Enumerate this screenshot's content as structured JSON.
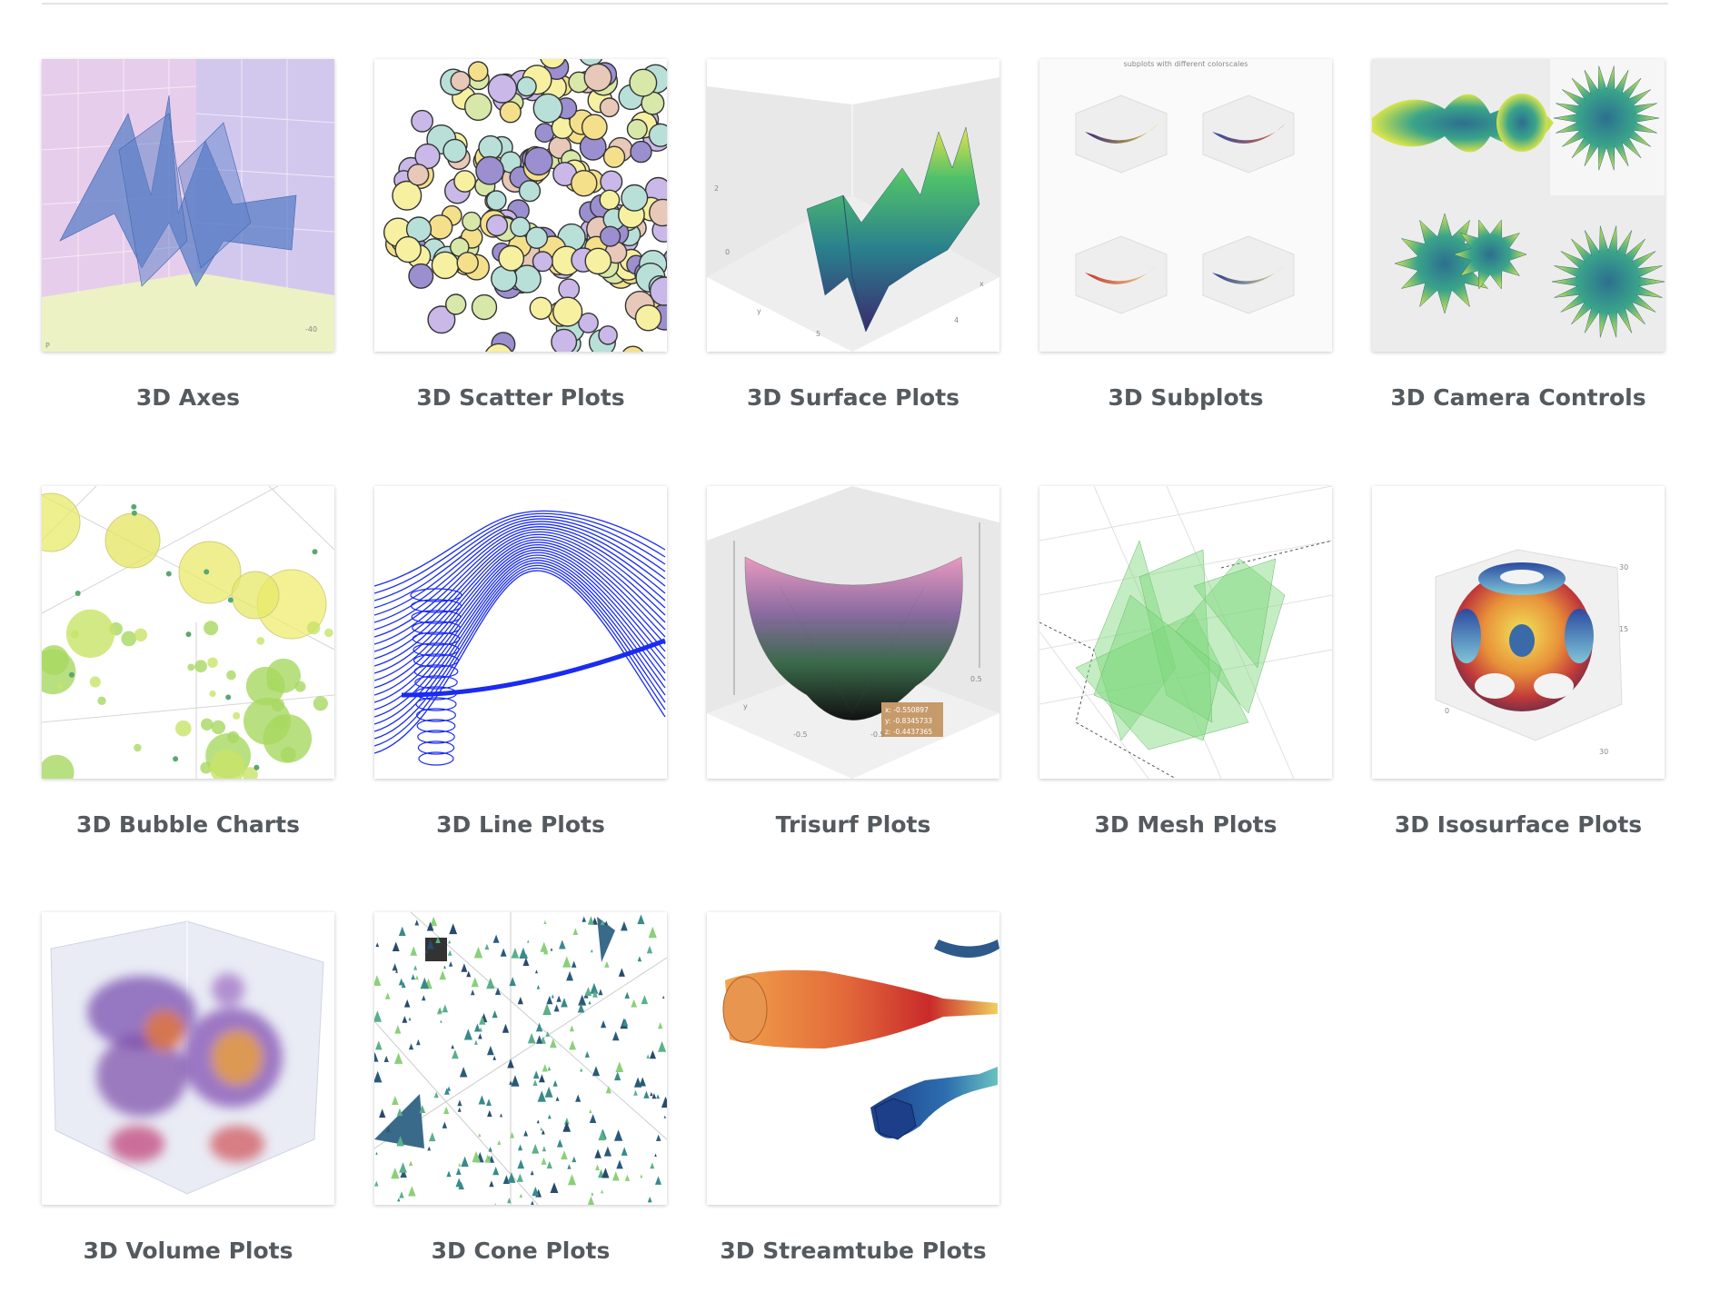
{
  "gallery": {
    "items": [
      {
        "label": "3D Axes"
      },
      {
        "label": "3D Scatter Plots"
      },
      {
        "label": "3D Surface Plots"
      },
      {
        "label": "3D Subplots"
      },
      {
        "label": "3D Camera Controls"
      },
      {
        "label": "3D Bubble Charts"
      },
      {
        "label": "3D Line Plots"
      },
      {
        "label": "Trisurf Plots"
      },
      {
        "label": "3D Mesh Plots"
      },
      {
        "label": "3D Isosurface Plots"
      },
      {
        "label": "3D Volume Plots"
      },
      {
        "label": "3D Cone Plots"
      },
      {
        "label": "3D Streamtube Plots"
      }
    ]
  },
  "thumbnails": {
    "subplots_title": "subplots with different colorscales",
    "trisurf_hover": {
      "x": "x: -0.550897",
      "y": "y: -0.8345733",
      "z": "z: -0.4437365"
    }
  }
}
